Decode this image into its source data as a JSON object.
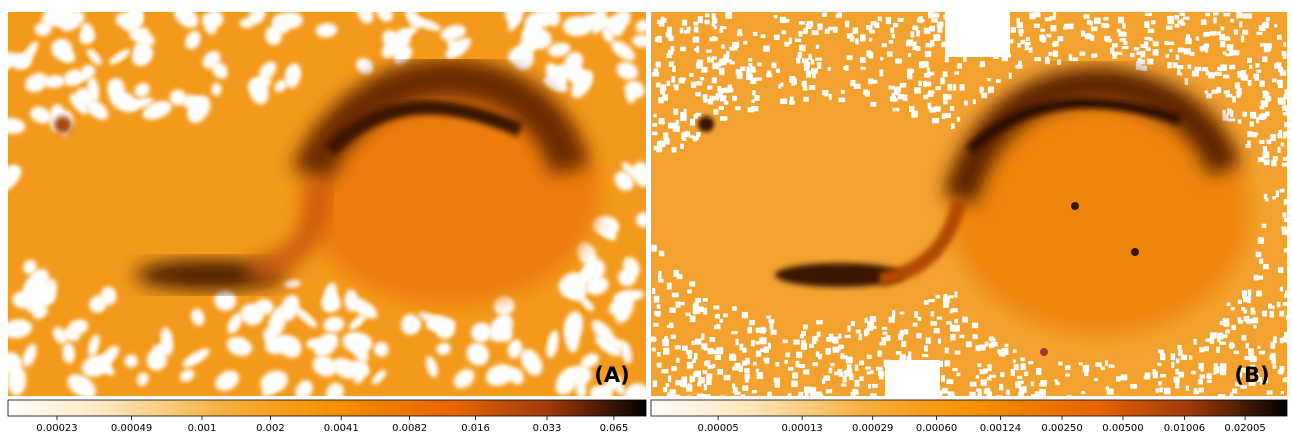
{
  "panels": [
    {
      "label": "(A)",
      "colorbar": {
        "scale": "log",
        "lim": [
          0.00014,
          0.09
        ],
        "ticks": [
          0.00023,
          0.00049,
          0.001,
          0.002,
          0.0041,
          0.0082,
          0.016,
          0.033,
          0.065
        ]
      }
    },
    {
      "label": "(B)",
      "colorbar": {
        "scale": "log",
        "lim": [
          2.33e-05,
          0.0323
        ],
        "ticks": [
          5e-05,
          0.00013,
          0.00029,
          {
            "value": 0.0006,
            "label": "0.00060"
          },
          0.00124,
          {
            "value": 0.0025,
            "label": "0.00250"
          },
          {
            "value": 0.005,
            "label": "0.00500"
          },
          0.01006,
          0.02005
        ]
      }
    }
  ]
}
